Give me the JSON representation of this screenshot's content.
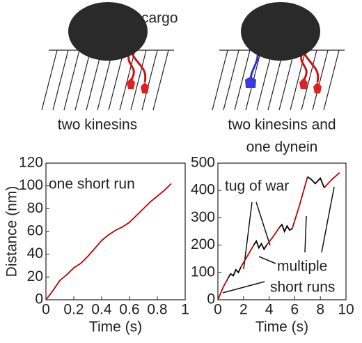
{
  "diagrams": [
    {
      "labels": [
        "cargo",
        "two kinesins"
      ]
    },
    {
      "labels": [
        "two kinesins and",
        "one dynein"
      ]
    }
  ],
  "chart_data": [
    {
      "type": "line",
      "xlabel": "Time (s)",
      "ylabel": "Distance (nm)",
      "annotations": [
        "one short run"
      ],
      "x": [
        0,
        0.05,
        0.1,
        0.15,
        0.2,
        0.25,
        0.3,
        0.35,
        0.4,
        0.45,
        0.5,
        0.55,
        0.6,
        0.65,
        0.7,
        0.75,
        0.8,
        0.85,
        0.9
      ],
      "series": [
        {
          "color": "#c00000",
          "values": [
            0,
            8,
            17,
            22,
            28,
            32,
            38,
            45,
            52,
            57,
            61,
            64,
            68,
            74,
            80,
            86,
            91,
            96,
            102
          ]
        }
      ],
      "xlim": [
        0,
        1
      ],
      "xticks": [
        0,
        0.2,
        0.4,
        0.6,
        0.8,
        1
      ],
      "ylim": [
        0,
        120
      ],
      "yticks": [
        0,
        20,
        40,
        60,
        80,
        100,
        120
      ]
    },
    {
      "type": "line",
      "xlabel": "Time (s)",
      "annotations": [
        "tug of war",
        "multiple",
        "short runs"
      ],
      "x": [
        0,
        0.4,
        0.8,
        1.0,
        1.2,
        1.4,
        1.6,
        1.8,
        2.3,
        2.8,
        3.0,
        3.2,
        3.4,
        3.6,
        3.8,
        4.3,
        4.8,
        5.0,
        5.2,
        5.4,
        5.6,
        5.8,
        6.4,
        7.0,
        7.3,
        7.6,
        8.0,
        8.3,
        8.9,
        9.5
      ],
      "series": [
        {
          "color": "#c00000",
          "values": [
            0,
            45,
            80,
            null,
            null,
            null,
            null,
            120,
            160,
            200,
            null,
            null,
            null,
            null,
            200,
            230,
            265,
            null,
            null,
            null,
            null,
            260,
            350,
            450,
            null,
            null,
            null,
            410,
            440,
            465
          ]
        },
        {
          "color": "#000000",
          "values": [
            null,
            null,
            80,
            95,
            88,
            110,
            100,
            120,
            null,
            200,
            215,
            190,
            205,
            185,
            200,
            null,
            265,
            275,
            250,
            270,
            255,
            260,
            null,
            450,
            440,
            425,
            445,
            410,
            null,
            null
          ]
        }
      ],
      "xlim": [
        0,
        10
      ],
      "xticks": [
        0,
        2,
        4,
        6,
        8,
        10
      ],
      "ylim": [
        0,
        500
      ],
      "yticks": [
        0,
        100,
        200,
        300,
        400,
        500
      ]
    }
  ]
}
